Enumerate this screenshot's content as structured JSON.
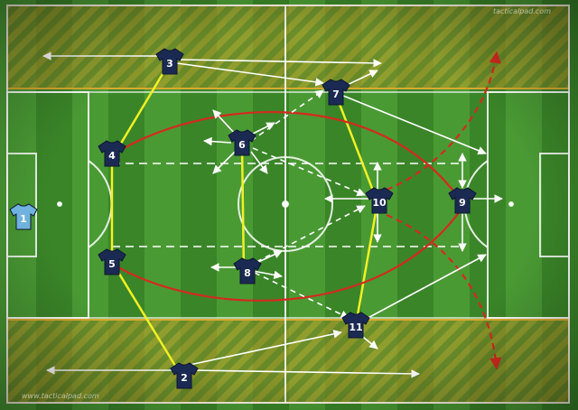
{
  "watermark_top": "tacticalpad.com",
  "watermark_bottom": "www.tacticalpad.com",
  "colors": {
    "pitch_dark": "#3a8528",
    "pitch_light": "#4a9a34",
    "zone_fill": "#c9a22a",
    "shirt": "#1b2a52",
    "keeper_shirt": "#6fb2dd",
    "link_line": "#f0f024",
    "run_line": "#d42a1e",
    "pass_line": "#ffffff"
  },
  "players": [
    {
      "id": "p1",
      "number": "1",
      "role": "goalkeeper"
    },
    {
      "id": "p2",
      "number": "2"
    },
    {
      "id": "p3",
      "number": "3"
    },
    {
      "id": "p4",
      "number": "4"
    },
    {
      "id": "p5",
      "number": "5"
    },
    {
      "id": "p6",
      "number": "6"
    },
    {
      "id": "p7",
      "number": "7"
    },
    {
      "id": "p8",
      "number": "8"
    },
    {
      "id": "p9",
      "number": "9"
    },
    {
      "id": "p10",
      "number": "10"
    },
    {
      "id": "p11",
      "number": "11"
    }
  ]
}
